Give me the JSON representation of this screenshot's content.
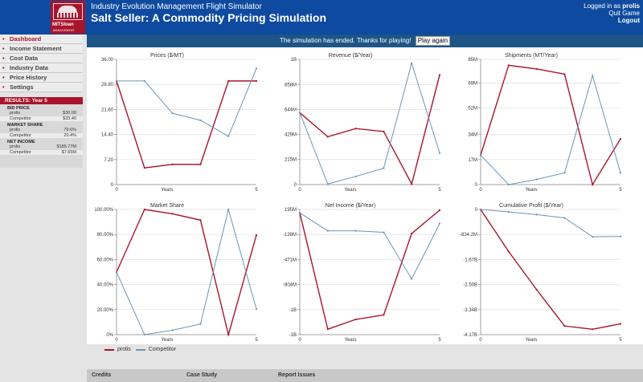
{
  "header": {
    "logo_text": "MITSloan",
    "logo_subtext": "MANAGEMENT",
    "subtitle": "Industry Evolution Management Flight Simulator",
    "title": "Salt Seller: A Commodity Pricing Simulation",
    "logged_in_prefix": "Logged in as",
    "username": "prolis",
    "quit_label": "Quit Game",
    "logout_label": "Logout"
  },
  "status": {
    "message": "The simulation has ended. Thanks for playing!",
    "play_again_label": "Play again"
  },
  "nav": {
    "bullet": "•",
    "items": [
      {
        "label": "Dashboard"
      },
      {
        "label": "Income Statement"
      },
      {
        "label": "Cost Data"
      },
      {
        "label": "Industry Data"
      },
      {
        "label": "Price History"
      },
      {
        "label": "Settings"
      }
    ]
  },
  "results": {
    "header": "RESULTS: Year 5",
    "bid_price": {
      "label": "BID PRICE",
      "player_name": "prolis",
      "player_value": "$30.00",
      "competitor_name": "Competitor",
      "competitor_value": "$33.40"
    },
    "market_share": {
      "label": "MARKET SHARE",
      "player_name": "prolis",
      "player_value": "79.6%",
      "competitor_name": "Competitor",
      "competitor_value": "20.4%"
    },
    "net_income": {
      "label": "NET INCOME",
      "player_name": "prolis",
      "player_value": "$185.77M",
      "competitor_name": "Competitor",
      "competitor_value": "$7.65M"
    }
  },
  "legend": {
    "player": "prolis",
    "competitor": "Competitor"
  },
  "footer": {
    "credits": "Credits",
    "case_study": "Case Study",
    "report_issues": "Report Issues"
  },
  "colors": {
    "player": "#a8142c",
    "competitor": "#6a95b5"
  },
  "chart_data": [
    {
      "type": "line",
      "title": "Prices ($/MT)",
      "xlabel": "Years",
      "x": [
        0,
        1,
        2,
        3,
        4,
        5
      ],
      "x_ticks": [
        "0",
        "5"
      ],
      "ylim": [
        0,
        36
      ],
      "y_ticks": [
        {
          "v": 0,
          "t": "0"
        },
        {
          "v": 7.2,
          "t": "7.20"
        },
        {
          "v": 14.4,
          "t": "14.40"
        },
        {
          "v": 21.6,
          "t": "21.60"
        },
        {
          "v": 28.8,
          "t": "28.80"
        },
        {
          "v": 36,
          "t": "36.00"
        }
      ],
      "series": [
        {
          "name": "prolis",
          "values": [
            29.8,
            4.8,
            5.8,
            5.8,
            29.8,
            29.8
          ]
        },
        {
          "name": "Competitor",
          "values": [
            29.8,
            29.8,
            20.5,
            18.5,
            13.9,
            33.4
          ]
        }
      ]
    },
    {
      "type": "line",
      "title": "Revenue ($/Year)",
      "xlabel": "Years",
      "x": [
        0,
        1,
        2,
        3,
        4,
        5
      ],
      "x_ticks": [
        "0",
        "5"
      ],
      "ylim": [
        0,
        1073
      ],
      "y_ticks": [
        {
          "v": 0,
          "t": "0"
        },
        {
          "v": 215,
          "t": "215M"
        },
        {
          "v": 429,
          "t": "429M"
        },
        {
          "v": 644,
          "t": "644M"
        },
        {
          "v": 858,
          "t": "858M"
        },
        {
          "v": 1073,
          "t": "1B"
        }
      ],
      "series": [
        {
          "name": "prolis",
          "values": [
            616,
            410,
            480,
            455,
            5,
            940
          ]
        },
        {
          "name": "Competitor",
          "values": [
            616,
            5,
            70,
            140,
            1040,
            270
          ]
        }
      ]
    },
    {
      "type": "line",
      "title": "Shipments (MT/Year)",
      "xlabel": "Years",
      "x": [
        0,
        1,
        2,
        3,
        4,
        5
      ],
      "x_ticks": [
        "0",
        "5"
      ],
      "ylim": [
        0,
        85
      ],
      "y_ticks": [
        {
          "v": 0,
          "t": "0"
        },
        {
          "v": 17,
          "t": "17M"
        },
        {
          "v": 34,
          "t": "34M"
        },
        {
          "v": 52,
          "t": "52M"
        },
        {
          "v": 69,
          "t": "69M"
        },
        {
          "v": 85,
          "t": "85M"
        }
      ],
      "series": [
        {
          "name": "prolis",
          "values": [
            20,
            81,
            78.5,
            75,
            0,
            31
          ]
        },
        {
          "name": "Competitor",
          "values": [
            20,
            0,
            3.5,
            8,
            74,
            8
          ]
        }
      ]
    },
    {
      "type": "line",
      "title": "Market Share",
      "xlabel": "Years",
      "x": [
        0,
        1,
        2,
        3,
        4,
        5
      ],
      "x_ticks": [
        "0",
        "5"
      ],
      "ylim": [
        0,
        100
      ],
      "y_ticks": [
        {
          "v": 0,
          "t": "0%"
        },
        {
          "v": 20,
          "t": "20.00%"
        },
        {
          "v": 40,
          "t": "40.00%"
        },
        {
          "v": 60,
          "t": "60.00%"
        },
        {
          "v": 80,
          "t": "80.00%"
        },
        {
          "v": 100,
          "t": "100.00%"
        }
      ],
      "series": [
        {
          "name": "prolis",
          "values": [
            50,
            100,
            96.5,
            91.5,
            0,
            79.6
          ]
        },
        {
          "name": "Competitor",
          "values": [
            50,
            0,
            3.5,
            8.5,
            100,
            20.4
          ]
        }
      ]
    },
    {
      "type": "line",
      "title": "Net Income ($/Year)",
      "xlabel": "Years",
      "x": [
        0,
        1,
        2,
        3,
        4,
        5
      ],
      "x_ticks": [
        "0",
        "5"
      ],
      "ylim": [
        -1473,
        195
      ],
      "y_ticks": [
        {
          "v": -1473,
          "t": "-1B"
        },
        {
          "v": -1139,
          "t": "-1B"
        },
        {
          "v": -804,
          "t": "-804M"
        },
        {
          "v": -471,
          "t": "-471M"
        },
        {
          "v": -138,
          "t": "-138M"
        },
        {
          "v": 195,
          "t": "195M"
        }
      ],
      "series": [
        {
          "name": "prolis",
          "values": [
            150,
            -1400,
            -1270,
            -1210,
            -125,
            185.77
          ]
        },
        {
          "name": "Competitor",
          "values": [
            150,
            -90,
            -90,
            -110,
            -730,
            7.65
          ]
        }
      ]
    },
    {
      "type": "line",
      "title": "Cumulative Profit ($/Year)",
      "xlabel": "Years",
      "x": [
        0,
        1,
        2,
        3,
        4,
        5
      ],
      "x_ticks": [
        "0",
        "5"
      ],
      "ylim": [
        -4170,
        0
      ],
      "y_ticks": [
        {
          "v": -4170,
          "t": "-4.17B"
        },
        {
          "v": -3340,
          "t": "-3.34B"
        },
        {
          "v": -2500,
          "t": "-2.50B"
        },
        {
          "v": -1670,
          "t": "-1.67B"
        },
        {
          "v": -834,
          "t": "-834.2M"
        },
        {
          "v": 0,
          "t": "0"
        }
      ],
      "series": [
        {
          "name": "prolis",
          "values": [
            0,
            -1400,
            -2670,
            -3880,
            -3990,
            -3810
          ]
        },
        {
          "name": "Competitor",
          "values": [
            0,
            -80,
            -170,
            -280,
            -910,
            -900
          ]
        }
      ]
    }
  ]
}
